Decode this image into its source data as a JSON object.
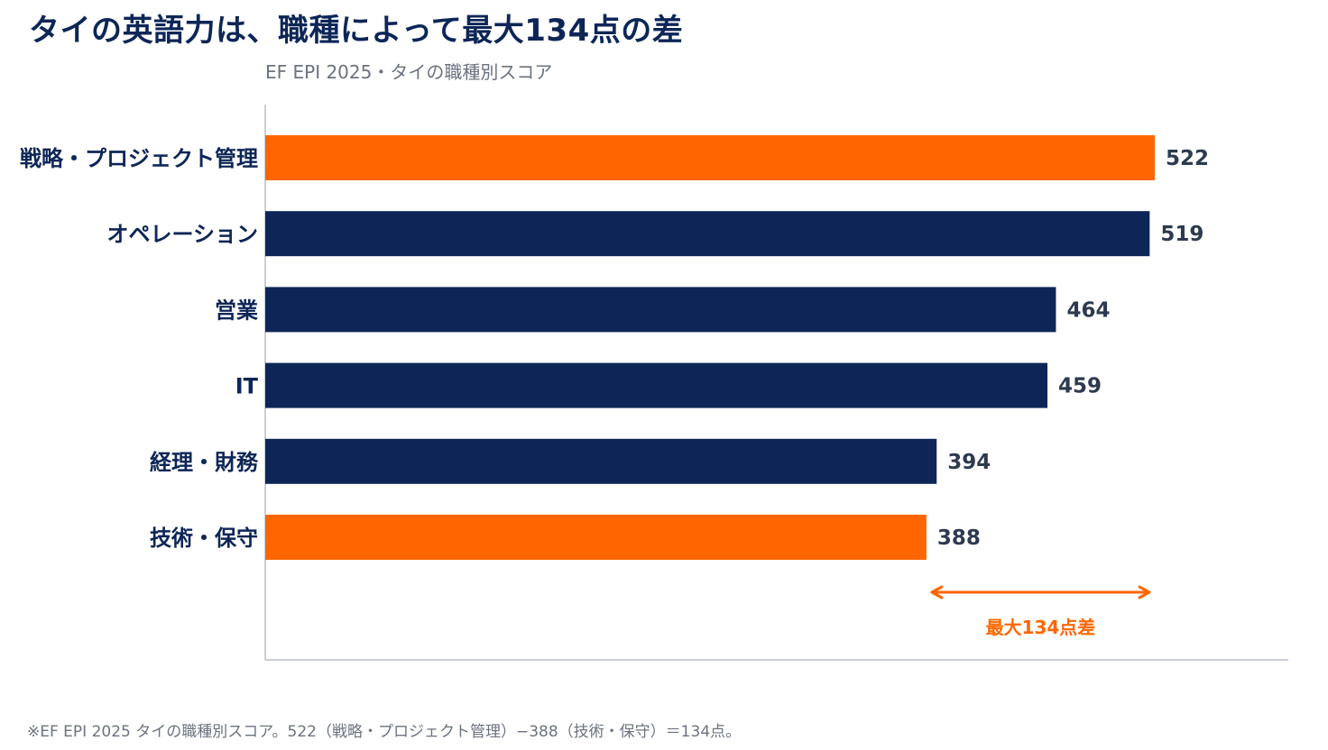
{
  "title": "タイの英語力は、職種によって最大134点の差",
  "subtitle": "EF EPI 2025・タイの職種別スコア",
  "footnote": "※EF EPI 2025 タイの職種別スコア。522（戦略・プロジェクト管理）−388（技術・保守）＝134点。",
  "colors": {
    "highlight": "#ff6600",
    "default": "#0d2657",
    "value_label": "#2d3a4f",
    "axis": "#c9ced6"
  },
  "chart_data": {
    "type": "bar",
    "orientation": "horizontal",
    "title": "タイの英語力は、職種によって最大134点の差",
    "subtitle": "EF EPI 2025・タイの職種別スコア",
    "categories": [
      "戦略・プロジェクト管理",
      "オペレーション",
      "営業",
      "IT",
      "経理・財務",
      "技術・保守"
    ],
    "values": [
      522,
      519,
      464,
      459,
      394,
      388
    ],
    "value_labels": [
      "522",
      "519",
      "464",
      "459",
      "394",
      "388"
    ],
    "highlighted": [
      true,
      false,
      false,
      false,
      false,
      true
    ],
    "xlim": [
      0,
      600
    ],
    "grid": false,
    "legend": false,
    "annotation": {
      "label": "最大134点差",
      "from": 388,
      "to": 522
    }
  }
}
